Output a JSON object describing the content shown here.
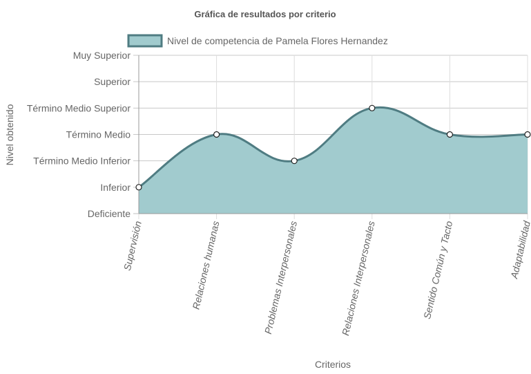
{
  "chart_data": {
    "type": "area",
    "title": "Gráfica de resultados por criterio",
    "xlabel": "Criterios",
    "ylabel": "Nivel obtenido",
    "legend_position": "top",
    "grid": true,
    "categories": [
      "Supervisión",
      "Relaciones humanas",
      "Problemas Interpersonales",
      "Relaciones Interpersonales",
      "Sentido Común y Tacto",
      "Adaptabilidad"
    ],
    "y_levels": [
      "Deficiente",
      "Inferior",
      "Término Medio Inferior",
      "Término Medio",
      "Término Medio Superior",
      "Superior",
      "Muy Superior"
    ],
    "ylim": [
      0,
      6
    ],
    "series": [
      {
        "name": "Nivel de competencia de Pamela Flores Hernandez",
        "values": [
          1,
          3,
          2,
          4,
          3,
          3
        ],
        "fill_color": "#a1cbce",
        "line_color": "#4f7c82"
      }
    ]
  }
}
